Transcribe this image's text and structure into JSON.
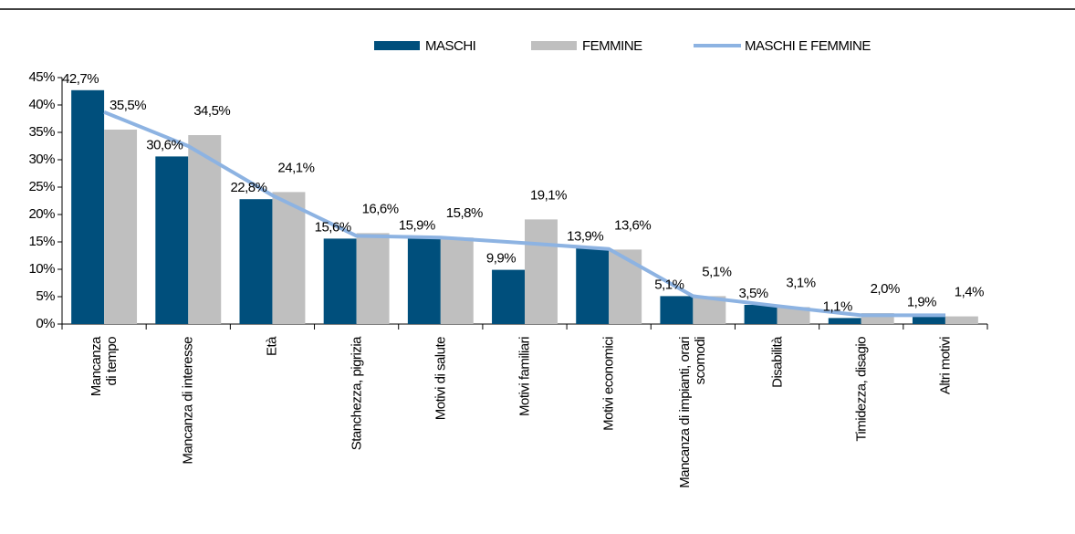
{
  "chart_data": {
    "type": "bar",
    "categories": [
      "Mancanza\ndi tempo",
      "Mancanza di interesse",
      "Età",
      "Stanchezza, pigrizia",
      "Motivi di salute",
      "Motivi familiari",
      "Motivi economici",
      "Mancanza di impianti, orari\nscomodi",
      "Disabilità",
      "Timidezza, disagio",
      "Altri motivi"
    ],
    "series": [
      {
        "name": "MASCHI",
        "color": "#004f7c",
        "values": [
          42.7,
          30.6,
          22.8,
          15.6,
          15.9,
          9.9,
          13.9,
          5.1,
          3.5,
          1.1,
          1.9
        ],
        "value_labels": [
          "42,7%",
          "30,6%",
          "22,8%",
          "15,6%",
          "15,9%",
          "9,9%",
          "13,9%",
          "5,1%",
          "3,5%",
          "1,1%",
          "1,9%"
        ]
      },
      {
        "name": "FEMMINE",
        "color": "#bfbfbf",
        "values": [
          35.5,
          34.5,
          24.1,
          16.6,
          15.8,
          19.1,
          13.6,
          5.1,
          3.1,
          2.0,
          1.4
        ],
        "value_labels": [
          "35,5%",
          "34,5%",
          "24,1%",
          "16,6%",
          "15,8%",
          "19,1%",
          "13,6%",
          "5,1%",
          "3,1%",
          "2,0%",
          "1,4%"
        ]
      },
      {
        "name": "MASCHI E FEMMINE",
        "type": "line",
        "color": "#8db3e2",
        "values": [
          38.7,
          32.5,
          23.5,
          16.1,
          15.8,
          14.8,
          13.7,
          5.1,
          3.3,
          1.6,
          1.6
        ]
      }
    ],
    "ylim": [
      0,
      45
    ],
    "yticks": [
      {
        "value": 0,
        "label": "0%"
      },
      {
        "value": 5,
        "label": "5%"
      },
      {
        "value": 10,
        "label": "10%"
      },
      {
        "value": 15,
        "label": "15%"
      },
      {
        "value": 20,
        "label": "20%"
      },
      {
        "value": 25,
        "label": "25%"
      },
      {
        "value": 30,
        "label": "30%"
      },
      {
        "value": 35,
        "label": "35%"
      },
      {
        "value": 40,
        "label": "40%"
      },
      {
        "value": 45,
        "label": "45%"
      }
    ],
    "legend": "top"
  }
}
